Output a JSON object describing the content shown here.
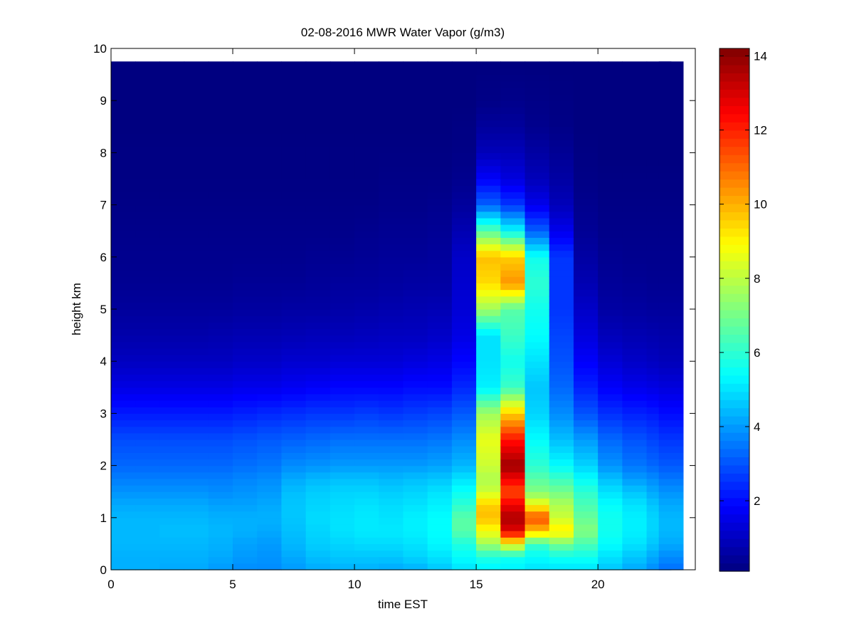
{
  "chart_data": {
    "type": "heatmap",
    "title": "02-08-2016 MWR Water Vapor (g/m3)",
    "xlabel": "time EST",
    "ylabel": "height km",
    "xlim": [
      0,
      24
    ],
    "ylim": [
      0,
      10
    ],
    "x_ticks": [
      0,
      5,
      10,
      15,
      20
    ],
    "y_ticks": [
      0,
      1,
      2,
      3,
      4,
      5,
      6,
      7,
      8,
      9,
      10
    ],
    "colormap": "jet",
    "clim": [
      0.1,
      14.2
    ],
    "colorbar_ticks": [
      2,
      4,
      6,
      8,
      10,
      12,
      14
    ],
    "grid": false,
    "data_extent": {
      "x": [
        0,
        23.5
      ],
      "y": [
        0,
        9.75
      ]
    },
    "column_width_hours": 1.0,
    "time_centers_hours": [
      0.5,
      1.5,
      2.5,
      3.5,
      4.5,
      5.5,
      6.5,
      7.5,
      8.5,
      9.5,
      10.5,
      11.5,
      12.5,
      13.5,
      14.5,
      15.5,
      16.5,
      17.5,
      18.5,
      19.5,
      20.5,
      21.5,
      22.5,
      23.0
    ],
    "profile_heights_km": [
      0,
      0.25,
      0.5,
      0.75,
      1.0,
      1.25,
      1.5,
      1.75,
      2.0,
      2.5,
      3.0,
      3.5,
      4.0,
      4.5,
      5.0,
      5.5,
      6.0,
      6.5,
      7.0,
      7.5,
      8.0,
      8.5,
      9.0,
      9.75
    ],
    "profiles_g_m3": [
      [
        4.3,
        4.3,
        4.4,
        4.4,
        4.4,
        4.2,
        3.9,
        3.6,
        3.3,
        2.9,
        2.2,
        1.5,
        1.0,
        0.7,
        0.5,
        0.35,
        0.3,
        0.25,
        0.2,
        0.15,
        0.15,
        0.1,
        0.1,
        0.1
      ],
      [
        4.3,
        4.3,
        4.4,
        4.4,
        4.4,
        4.2,
        3.9,
        3.6,
        3.3,
        2.9,
        2.2,
        1.5,
        1.0,
        0.7,
        0.5,
        0.35,
        0.3,
        0.25,
        0.2,
        0.15,
        0.15,
        0.1,
        0.1,
        0.1
      ],
      [
        4.2,
        4.3,
        4.4,
        4.5,
        4.4,
        4.2,
        3.9,
        3.6,
        3.3,
        2.9,
        2.2,
        1.5,
        1.0,
        0.7,
        0.5,
        0.35,
        0.3,
        0.25,
        0.2,
        0.15,
        0.15,
        0.1,
        0.1,
        0.1
      ],
      [
        4.2,
        4.3,
        4.4,
        4.5,
        4.4,
        4.2,
        3.9,
        3.6,
        3.3,
        2.9,
        2.2,
        1.5,
        1.0,
        0.7,
        0.5,
        0.35,
        0.3,
        0.25,
        0.2,
        0.15,
        0.15,
        0.1,
        0.1,
        0.1
      ],
      [
        4.0,
        4.2,
        4.3,
        4.4,
        4.3,
        4.1,
        3.8,
        3.6,
        3.3,
        2.9,
        2.2,
        1.5,
        1.0,
        0.75,
        0.5,
        0.35,
        0.3,
        0.25,
        0.2,
        0.15,
        0.15,
        0.1,
        0.1,
        0.1
      ],
      [
        3.8,
        4.0,
        4.1,
        4.3,
        4.3,
        4.1,
        3.9,
        3.7,
        3.4,
        3.0,
        2.3,
        1.6,
        1.1,
        0.8,
        0.55,
        0.4,
        0.3,
        0.25,
        0.2,
        0.15,
        0.15,
        0.1,
        0.1,
        0.1
      ],
      [
        3.8,
        3.9,
        4.0,
        4.2,
        4.3,
        4.2,
        4.0,
        3.8,
        3.5,
        3.1,
        2.4,
        1.6,
        1.1,
        0.8,
        0.55,
        0.4,
        0.3,
        0.25,
        0.2,
        0.15,
        0.15,
        0.1,
        0.1,
        0.1
      ],
      [
        4.0,
        4.2,
        4.4,
        4.5,
        4.6,
        4.6,
        4.5,
        4.2,
        3.8,
        3.2,
        2.5,
        1.7,
        1.2,
        0.85,
        0.6,
        0.4,
        0.3,
        0.25,
        0.2,
        0.15,
        0.15,
        0.1,
        0.1,
        0.1
      ],
      [
        4.2,
        4.5,
        4.7,
        4.8,
        4.9,
        4.8,
        4.7,
        4.4,
        3.9,
        3.3,
        2.6,
        1.8,
        1.2,
        0.9,
        0.6,
        0.45,
        0.35,
        0.25,
        0.2,
        0.15,
        0.15,
        0.1,
        0.1,
        0.1
      ],
      [
        4.3,
        4.6,
        4.8,
        5.0,
        5.0,
        4.9,
        4.8,
        4.5,
        4.0,
        3.4,
        2.6,
        1.9,
        1.3,
        0.9,
        0.65,
        0.5,
        0.35,
        0.25,
        0.2,
        0.15,
        0.15,
        0.1,
        0.1,
        0.1
      ],
      [
        4.3,
        4.6,
        4.9,
        5.1,
        5.1,
        5.0,
        4.8,
        4.5,
        4.0,
        3.4,
        2.7,
        1.9,
        1.3,
        0.95,
        0.7,
        0.5,
        0.4,
        0.3,
        0.2,
        0.15,
        0.15,
        0.1,
        0.1,
        0.1
      ],
      [
        4.2,
        4.6,
        4.9,
        5.1,
        5.0,
        4.9,
        4.7,
        4.4,
        4.0,
        3.4,
        2.6,
        1.9,
        1.3,
        1.0,
        0.75,
        0.55,
        0.45,
        0.35,
        0.25,
        0.2,
        0.15,
        0.1,
        0.1,
        0.1
      ],
      [
        4.3,
        4.8,
        5.0,
        5.2,
        5.2,
        5.0,
        4.8,
        4.5,
        4.0,
        3.4,
        2.7,
        2.0,
        1.4,
        1.0,
        0.8,
        0.6,
        0.45,
        0.35,
        0.25,
        0.2,
        0.15,
        0.1,
        0.1,
        0.1
      ],
      [
        4.6,
        5.0,
        5.3,
        5.4,
        5.4,
        5.2,
        5.0,
        4.6,
        4.1,
        3.5,
        2.8,
        2.0,
        1.5,
        1.1,
        0.85,
        0.6,
        0.5,
        0.4,
        0.3,
        0.2,
        0.15,
        0.1,
        0.1,
        0.1
      ],
      [
        5.0,
        5.4,
        5.8,
        6.6,
        6.6,
        6.0,
        5.5,
        5.0,
        4.4,
        3.8,
        3.1,
        2.4,
        1.9,
        1.5,
        1.3,
        1.2,
        1.1,
        0.8,
        0.5,
        0.3,
        0.2,
        0.15,
        0.1,
        0.1
      ],
      [
        5.2,
        5.8,
        7.6,
        8.8,
        9.8,
        9.6,
        8.2,
        7.8,
        8.2,
        8.6,
        7.6,
        5.2,
        5.0,
        5.0,
        7.6,
        9.4,
        9.8,
        6.6,
        3.2,
        1.8,
        0.9,
        0.5,
        0.2,
        0.1
      ],
      [
        5.2,
        5.6,
        8.8,
        12.8,
        13.6,
        12.6,
        11.4,
        12.6,
        13.8,
        12.2,
        9.6,
        6.2,
        5.6,
        6.2,
        6.6,
        10.4,
        9.6,
        5.4,
        2.6,
        1.4,
        0.9,
        0.5,
        0.25,
        0.1
      ],
      [
        5.0,
        5.4,
        6.2,
        9.8,
        11.4,
        8.8,
        7.2,
        6.6,
        6.0,
        5.4,
        4.8,
        4.6,
        5.0,
        5.4,
        5.6,
        6.0,
        5.6,
        3.2,
        1.6,
        0.9,
        0.6,
        0.3,
        0.2,
        0.1
      ],
      [
        5.0,
        5.6,
        7.0,
        9.2,
        8.2,
        7.8,
        7.0,
        6.2,
        5.4,
        4.5,
        3.8,
        3.3,
        3.0,
        2.8,
        2.6,
        2.6,
        2.6,
        1.6,
        0.9,
        0.6,
        0.4,
        0.2,
        0.15,
        0.1
      ],
      [
        5.0,
        5.6,
        6.4,
        7.2,
        6.8,
        6.4,
        6.0,
        5.4,
        4.8,
        4.0,
        3.0,
        2.3,
        1.8,
        1.4,
        1.1,
        0.8,
        0.6,
        0.4,
        0.3,
        0.2,
        0.15,
        0.1,
        0.1,
        0.1
      ],
      [
        4.6,
        5.0,
        5.4,
        5.6,
        5.6,
        5.4,
        5.0,
        4.5,
        3.9,
        3.3,
        2.5,
        1.8,
        1.3,
        0.9,
        0.6,
        0.45,
        0.35,
        0.25,
        0.2,
        0.15,
        0.1,
        0.1,
        0.1,
        0.1
      ],
      [
        4.2,
        4.6,
        5.0,
        5.2,
        5.2,
        5.0,
        4.6,
        4.0,
        3.5,
        3.0,
        2.3,
        1.6,
        1.1,
        0.8,
        0.55,
        0.4,
        0.3,
        0.25,
        0.2,
        0.15,
        0.1,
        0.1,
        0.1,
        0.1
      ],
      [
        3.8,
        4.2,
        4.6,
        4.8,
        4.8,
        4.6,
        4.2,
        3.8,
        3.3,
        2.8,
        2.2,
        1.5,
        1.0,
        0.75,
        0.5,
        0.35,
        0.3,
        0.25,
        0.2,
        0.15,
        0.1,
        0.1,
        0.1,
        0.1
      ],
      [
        3.4,
        3.8,
        4.2,
        4.4,
        4.4,
        4.2,
        3.9,
        3.5,
        3.1,
        2.6,
        2.0,
        1.4,
        0.9,
        0.7,
        0.5,
        0.35,
        0.3,
        0.25,
        0.2,
        0.15,
        0.1,
        0.1,
        0.1,
        0.1
      ]
    ]
  }
}
